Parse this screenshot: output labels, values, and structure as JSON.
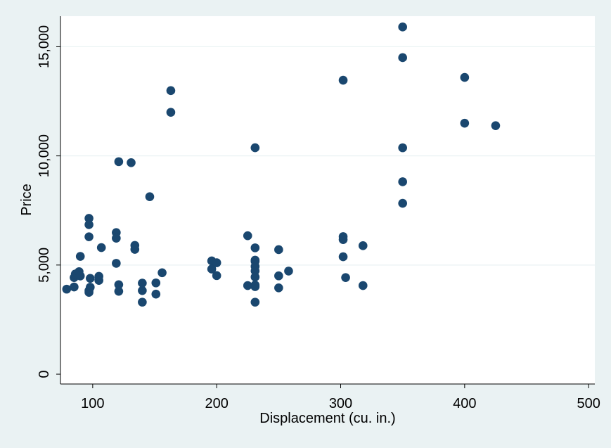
{
  "chart_data": {
    "type": "scatter",
    "title": "",
    "xlabel": "Displacement (cu. in.)",
    "ylabel": "Price",
    "xlim": [
      74,
      505
    ],
    "ylim": [
      -450,
      16400
    ],
    "xticks": [
      100,
      200,
      300,
      400,
      500
    ],
    "xtick_labels": [
      "100",
      "200",
      "300",
      "400",
      "500"
    ],
    "yticks": [
      0,
      5000,
      10000,
      15000
    ],
    "ytick_labels": [
      "0",
      "5,000",
      "10,000",
      "15,000"
    ],
    "grid": "horizontal",
    "legend": "none",
    "colors": {
      "background": "#eaf2f3",
      "plot_area": "#ffffff",
      "marker": "#1a476f",
      "gridline": "#eaf2f3"
    },
    "points": [
      [
        79,
        3895
      ],
      [
        85,
        3995
      ],
      [
        85,
        4425
      ],
      [
        86,
        4589
      ],
      [
        89,
        4697
      ],
      [
        90,
        4499
      ],
      [
        90,
        5397
      ],
      [
        97,
        7140
      ],
      [
        97,
        6850
      ],
      [
        97,
        6295
      ],
      [
        97,
        3748
      ],
      [
        97,
        3829
      ],
      [
        98,
        3984
      ],
      [
        98,
        4389
      ],
      [
        105,
        4296
      ],
      [
        105,
        4482
      ],
      [
        107,
        5799
      ],
      [
        119,
        6486
      ],
      [
        119,
        6229
      ],
      [
        119,
        5079
      ],
      [
        121,
        9735
      ],
      [
        121,
        4099
      ],
      [
        121,
        3798
      ],
      [
        131,
        9690
      ],
      [
        134,
        5899
      ],
      [
        134,
        5719
      ],
      [
        140,
        4172
      ],
      [
        140,
        3829
      ],
      [
        140,
        3299
      ],
      [
        146,
        8129
      ],
      [
        151,
        4181
      ],
      [
        151,
        3667
      ],
      [
        156,
        4647
      ],
      [
        163,
        12990
      ],
      [
        163,
        11995
      ],
      [
        196,
        5189
      ],
      [
        196,
        4816
      ],
      [
        200,
        5104
      ],
      [
        200,
        4516
      ],
      [
        225,
        6342
      ],
      [
        225,
        4060
      ],
      [
        231,
        10372
      ],
      [
        231,
        5788
      ],
      [
        231,
        5222
      ],
      [
        231,
        5172
      ],
      [
        231,
        4934
      ],
      [
        231,
        4733
      ],
      [
        231,
        4453
      ],
      [
        231,
        4082
      ],
      [
        231,
        4010
      ],
      [
        231,
        3299
      ],
      [
        250,
        5705
      ],
      [
        250,
        4504
      ],
      [
        250,
        3955
      ],
      [
        258,
        4723
      ],
      [
        302,
        13466
      ],
      [
        302,
        6303
      ],
      [
        302,
        6165
      ],
      [
        302,
        5379
      ],
      [
        304,
        4425
      ],
      [
        318,
        5886
      ],
      [
        318,
        4060
      ],
      [
        350,
        15906
      ],
      [
        350,
        14500
      ],
      [
        350,
        10371
      ],
      [
        350,
        8814
      ],
      [
        350,
        7827
      ],
      [
        400,
        13594
      ],
      [
        400,
        11497
      ],
      [
        425,
        11385
      ]
    ]
  }
}
